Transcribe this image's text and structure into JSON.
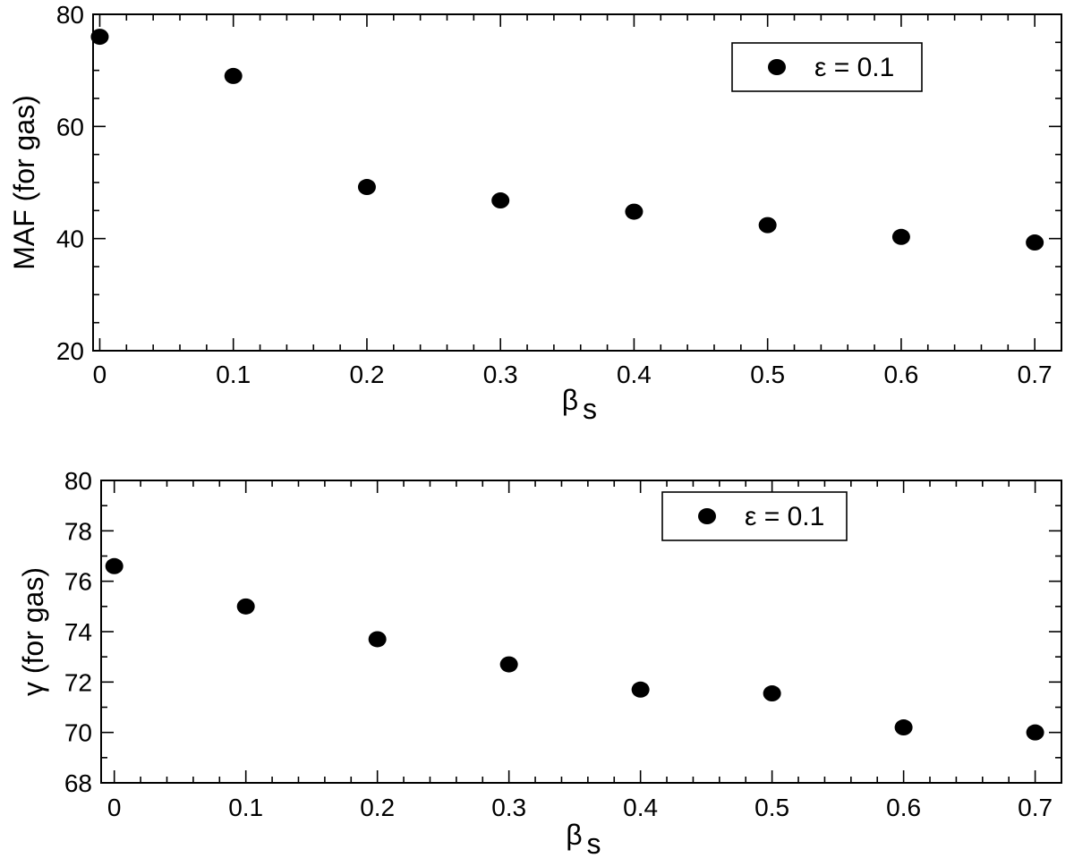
{
  "chart_data": [
    {
      "type": "scatter",
      "xlabel": "β",
      "xlabel_sub": "s",
      "ylabel": "MAF (for gas)",
      "xlim": [
        -0.005,
        0.72
      ],
      "ylim": [
        20,
        80
      ],
      "xticks": [
        0,
        0.1,
        0.2,
        0.3,
        0.4,
        0.5,
        0.6,
        0.7
      ],
      "xtick_labels": [
        "0",
        "0.1",
        "0.2",
        "0.3",
        "0.4",
        "0.5",
        "0.6",
        "0.7"
      ],
      "xminor_step": 0.02,
      "yticks": [
        20,
        40,
        60,
        80
      ],
      "ytick_labels": [
        "20",
        "40",
        "60",
        "80"
      ],
      "yminor_step": 5,
      "legend_position": "top-right",
      "marker_color": "#000000",
      "series": [
        {
          "name": "ε = 0.1",
          "x": [
            0,
            0.1,
            0.2,
            0.3,
            0.4,
            0.5,
            0.6,
            0.7
          ],
          "y": [
            76.0,
            69.0,
            49.2,
            46.8,
            44.8,
            42.4,
            40.3,
            39.3
          ]
        }
      ]
    },
    {
      "type": "scatter",
      "xlabel": "β",
      "xlabel_sub": "s",
      "ylabel": "γ (for gas)",
      "xlim": [
        -0.01,
        0.72
      ],
      "ylim": [
        68,
        80
      ],
      "xticks": [
        0,
        0.1,
        0.2,
        0.3,
        0.4,
        0.5,
        0.6,
        0.7
      ],
      "xtick_labels": [
        "0",
        "0.1",
        "0.2",
        "0.3",
        "0.4",
        "0.5",
        "0.6",
        "0.7"
      ],
      "xminor_step": 0.02,
      "yticks": [
        68,
        70,
        72,
        74,
        76,
        78,
        80
      ],
      "ytick_labels": [
        "68",
        "70",
        "72",
        "74",
        "76",
        "78",
        "80"
      ],
      "yminor_step": 1,
      "legend_position": "top-right",
      "marker_color": "#000000",
      "series": [
        {
          "name": "ε = 0.1",
          "x": [
            0,
            0.1,
            0.2,
            0.3,
            0.4,
            0.5,
            0.6,
            0.7
          ],
          "y": [
            76.6,
            75.0,
            73.7,
            72.7,
            71.7,
            71.55,
            70.2,
            70.0
          ]
        }
      ]
    }
  ]
}
